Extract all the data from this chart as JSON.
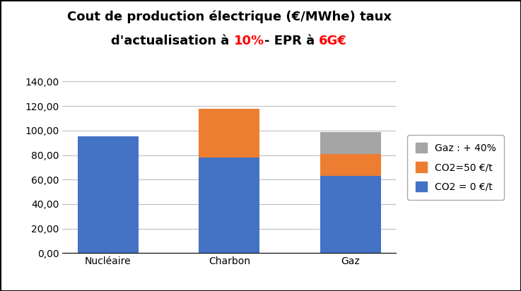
{
  "categories": [
    "Nucléaire",
    "Charbon",
    "Gaz"
  ],
  "co2_zero": [
    95.0,
    78.0,
    63.0
  ],
  "co2_fifty": [
    0.0,
    40.0,
    18.0
  ],
  "gaz_plus40": [
    0.0,
    0.0,
    18.0
  ],
  "color_blue": "#4472C4",
  "color_orange": "#ED7D31",
  "color_gray": "#A5A5A5",
  "legend_labels": [
    "CO2 = 0 €/t",
    "CO2=50 €/t",
    "Gaz : + 40%"
  ],
  "ylim": [
    0,
    140
  ],
  "yticks": [
    0,
    20,
    40,
    60,
    80,
    100,
    120,
    140
  ],
  "ytick_labels": [
    "0,00",
    "20,00",
    "40,00",
    "60,00",
    "80,00",
    "100,00",
    "120,00",
    "140,00"
  ],
  "title_line1": "Cout de production électrique (€/MWhe) taux",
  "title_line2_parts": [
    [
      "d'actualisation à ",
      "black"
    ],
    [
      "10%",
      "red"
    ],
    [
      "- EPR à ",
      "black"
    ],
    [
      "6G€",
      "red"
    ]
  ],
  "title_fontsize": 13,
  "tick_fontsize": 10,
  "legend_fontsize": 10,
  "bar_width": 0.5,
  "background_color": "#FFFFFF",
  "grid_color": "#BFBFBF",
  "border_color": "#000000"
}
